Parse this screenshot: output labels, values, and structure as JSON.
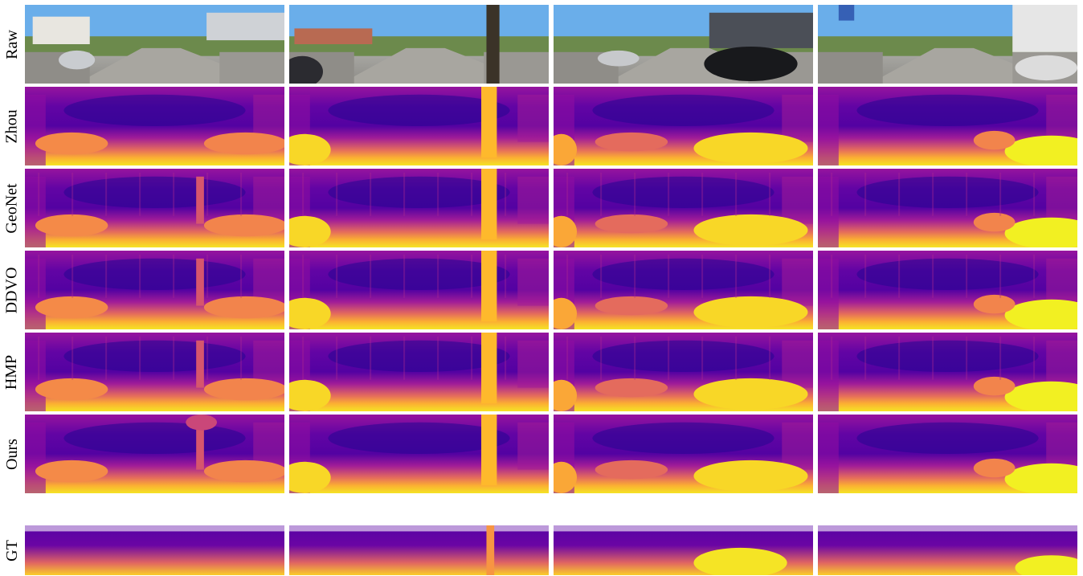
{
  "figure": {
    "row_labels": {
      "raw": "Raw",
      "zhou": "Zhou",
      "geonet": "GeoNet",
      "ddvo": "DDVO",
      "hmp": "HMP",
      "ours": "Ours",
      "gt": "GT"
    },
    "columns": 4,
    "colormap": "plasma"
  }
}
